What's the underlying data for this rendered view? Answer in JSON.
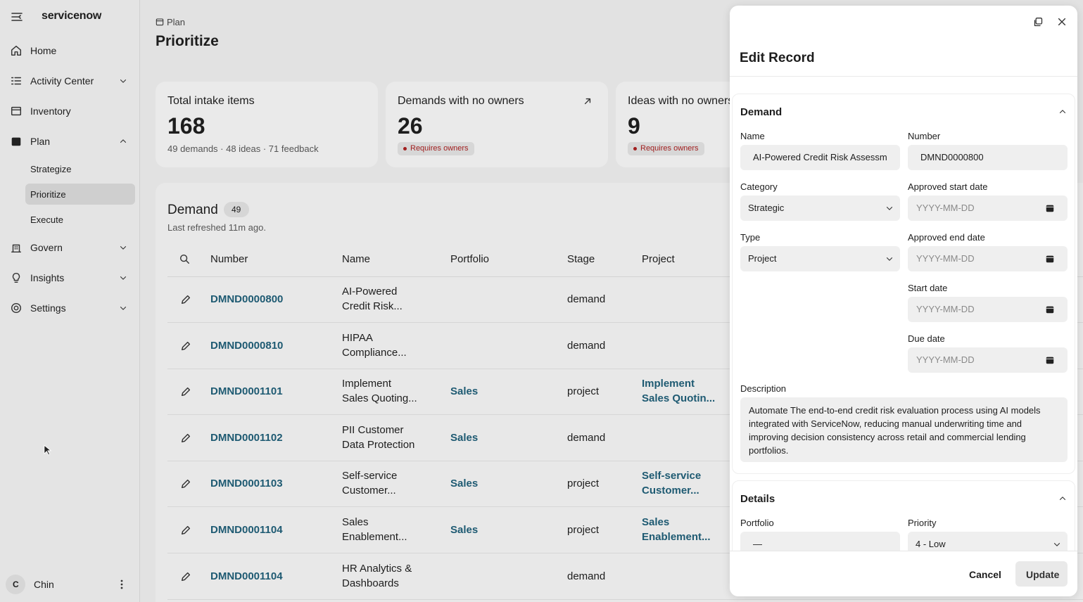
{
  "sidebar": {
    "brand": "servicenow",
    "nav": [
      {
        "label": "Home"
      },
      {
        "label": "Activity Center",
        "expanded": false
      },
      {
        "label": "Inventory"
      },
      {
        "label": "Plan",
        "expanded": true,
        "children": [
          {
            "label": "Strategize"
          },
          {
            "label": "Prioritize",
            "selected": true
          },
          {
            "label": "Execute"
          }
        ]
      },
      {
        "label": "Govern",
        "expanded": false
      },
      {
        "label": "Insights",
        "expanded": false
      },
      {
        "label": "Settings",
        "expanded": false
      }
    ],
    "user": {
      "initial": "C",
      "name": "Chin"
    }
  },
  "header": {
    "breadcrumb": "Plan",
    "title": "Prioritize"
  },
  "cards": [
    {
      "title": "Total intake items",
      "value": "168",
      "detail": "49 demands · 48 ideas · 71 feedback"
    },
    {
      "title": "Demands with no owners",
      "value": "26",
      "badge": "Requires owners"
    },
    {
      "title": "Ideas with no owners",
      "value": "9",
      "badge": "Requires owners"
    }
  ],
  "table": {
    "title": "Demand",
    "count": "49",
    "refreshed": "Last refreshed 11m ago.",
    "columns": [
      "Number",
      "Name",
      "Portfolio",
      "Stage",
      "Project"
    ],
    "rows": [
      {
        "number": "DMND0000800",
        "name": [
          "AI-Powered",
          "Credit Risk..."
        ],
        "stage": "demand"
      },
      {
        "number": "DMND0000810",
        "name": [
          "HIPAA",
          "Compliance..."
        ],
        "stage": "demand"
      },
      {
        "number": "DMND0001101",
        "name": [
          "Implement",
          "Sales Quoting..."
        ],
        "portfolio": "Sales",
        "stage": "project",
        "project": [
          "Implement",
          "Sales Quotin..."
        ]
      },
      {
        "number": "DMND0001102",
        "name": [
          "PII Customer",
          "Data Protection"
        ],
        "portfolio": "Sales",
        "stage": "demand"
      },
      {
        "number": "DMND0001103",
        "name": [
          "Self-service",
          "Customer..."
        ],
        "portfolio": "Sales",
        "stage": "project",
        "project": [
          "Self-service",
          "Customer..."
        ]
      },
      {
        "number": "DMND0001104",
        "name": [
          "Sales",
          "Enablement..."
        ],
        "portfolio": "Sales",
        "stage": "project",
        "project": [
          "Sales",
          "Enablement..."
        ]
      },
      {
        "number": "DMND0001104",
        "name": [
          "HR Analytics &",
          "Dashboards"
        ],
        "stage": "demand"
      }
    ]
  },
  "modal": {
    "title": "Edit Record",
    "demand_section": {
      "title": "Demand",
      "fields": [
        {
          "label": "Name",
          "value": "AI-Powered Credit Risk Assessm",
          "control": "text"
        },
        {
          "label": "Number",
          "value": "DMND0000800",
          "control": "text"
        },
        {
          "label": "Category",
          "value": "Strategic",
          "control": "select"
        },
        {
          "label": "Approved start date",
          "placeholder": "YYYY-MM-DD",
          "control": "date"
        },
        {
          "label": "Type",
          "value": "Project",
          "control": "select"
        },
        {
          "label": "Approved end date",
          "placeholder": "YYYY-MM-DD",
          "control": "date"
        },
        {
          "label": "Start date",
          "placeholder": "YYYY-MM-DD",
          "control": "date"
        },
        {
          "label": "Due date",
          "placeholder": "YYYY-MM-DD",
          "control": "date"
        }
      ],
      "description": {
        "label": "Description",
        "value": "Automate The end-to-end credit risk evaluation process using AI models integrated with ServiceNow, reducing manual underwriting time and improving decision consistency across retail and commercial lending portfolios."
      }
    },
    "details_section": {
      "title": "Details",
      "fields": [
        {
          "label": "Portfolio",
          "value": "—",
          "control": "text"
        },
        {
          "label": "Priority",
          "value": "4 - Low",
          "control": "select"
        }
      ]
    },
    "buttons": {
      "cancel": "Cancel",
      "update": "Update"
    }
  }
}
